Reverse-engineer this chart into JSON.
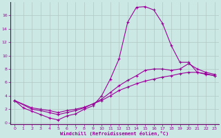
{
  "background_color": "#cce8e4",
  "grid_color": "#b0c8c4",
  "line_color": "#990099",
  "spine_color": "#660066",
  "xlabel": "Windchill (Refroidissement éolien,°C)",
  "xlim": [
    -0.5,
    23.5
  ],
  "ylim": [
    -0.2,
    18
  ],
  "xticks": [
    0,
    1,
    2,
    3,
    4,
    5,
    6,
    7,
    8,
    9,
    10,
    11,
    12,
    13,
    14,
    15,
    16,
    17,
    18,
    19,
    20,
    21,
    22,
    23
  ],
  "yticks": [
    0,
    2,
    4,
    6,
    8,
    10,
    12,
    14,
    16
  ],
  "line1_x": [
    0,
    1,
    2,
    3,
    4,
    5,
    6,
    7,
    8,
    9,
    10,
    11,
    12,
    13,
    14,
    15,
    16,
    17,
    18,
    19,
    20,
    21,
    22,
    23
  ],
  "line1_y": [
    3.3,
    2.2,
    1.7,
    1.2,
    0.7,
    0.4,
    1.0,
    1.3,
    2.0,
    2.5,
    4.0,
    6.5,
    9.5,
    15.0,
    17.2,
    17.3,
    16.8,
    14.8,
    11.5,
    9.0,
    9.0,
    7.5,
    7.2,
    7.0
  ],
  "line2_x": [
    0,
    2,
    3,
    4,
    5,
    6,
    7,
    8,
    9,
    10,
    11,
    12,
    13,
    14,
    15,
    16,
    17,
    18,
    19,
    20,
    21,
    22,
    23
  ],
  "line2_y": [
    3.3,
    2.0,
    1.8,
    1.5,
    1.2,
    1.5,
    1.8,
    2.2,
    2.8,
    3.5,
    4.5,
    5.5,
    6.3,
    7.0,
    7.8,
    8.0,
    8.0,
    7.8,
    8.0,
    8.8,
    8.0,
    7.5,
    7.2
  ],
  "line3_x": [
    0,
    2,
    3,
    4,
    5,
    6,
    7,
    8,
    9,
    10,
    11,
    12,
    13,
    14,
    15,
    16,
    17,
    18,
    19,
    20,
    21,
    22,
    23
  ],
  "line3_y": [
    3.3,
    2.2,
    2.0,
    1.8,
    1.5,
    1.8,
    2.0,
    2.3,
    2.8,
    3.3,
    4.0,
    4.8,
    5.3,
    5.8,
    6.2,
    6.5,
    6.8,
    7.0,
    7.3,
    7.5,
    7.5,
    7.3,
    7.0
  ]
}
